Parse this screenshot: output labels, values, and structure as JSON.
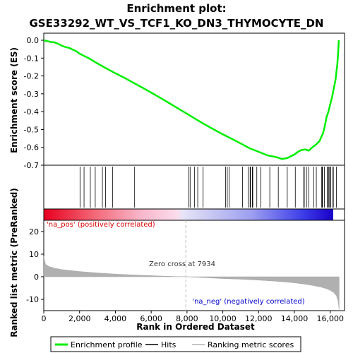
{
  "chart_data": {
    "type": "line",
    "title": "Enrichment plot: GSE33292_WT_VS_TCF1_KO_DN3_THYMOCYTE_DN",
    "title_line1": "Enrichment plot:",
    "title_line2": "GSE33292_WT_VS_TCF1_KO_DN3_THYMOCYTE_DN",
    "ylabel_top": "Enrichment score (ES)",
    "ylabel_bottom": "Ranked list metric (PreRanked)",
    "xlabel": "Rank in Ordered Dataset",
    "top_ylim": [
      -0.7,
      0.0
    ],
    "top_yticks": [
      "0.0",
      "-0.1",
      "-0.2",
      "-0.3",
      "-0.4",
      "-0.5",
      "-0.6",
      "-0.7"
    ],
    "bottom_ylim": [
      -15,
      25
    ],
    "bottom_yticks": [
      "20",
      "10",
      "0",
      "-10"
    ],
    "xlim": [
      0,
      16800
    ],
    "xticks": [
      "0",
      "2,000",
      "4,000",
      "6,000",
      "8,000",
      "10,000",
      "12,000",
      "14,000",
      "16,000"
    ],
    "grid": false,
    "enrichment_profile": {
      "name": "Enrichment profile",
      "color": "#00ee00",
      "x": [
        0,
        200,
        400,
        600,
        800,
        1000,
        1200,
        1400,
        1600,
        1800,
        2000,
        2500,
        3000,
        3500,
        4000,
        4500,
        5000,
        5500,
        6000,
        6500,
        7000,
        7500,
        8000,
        8500,
        9000,
        9500,
        10000,
        10500,
        11000,
        11500,
        12000,
        12500,
        13000,
        13300,
        13600,
        13800,
        14000,
        14200,
        14400,
        14600,
        14800,
        15000,
        15200,
        15400,
        15600,
        15700,
        15800,
        15900,
        16000,
        16100,
        16200,
        16300,
        16400,
        16450,
        16480
      ],
      "y": [
        0.0,
        -0.005,
        -0.01,
        -0.012,
        -0.02,
        -0.03,
        -0.038,
        -0.042,
        -0.052,
        -0.06,
        -0.075,
        -0.1,
        -0.13,
        -0.158,
        -0.185,
        -0.21,
        -0.238,
        -0.265,
        -0.293,
        -0.322,
        -0.352,
        -0.382,
        -0.412,
        -0.442,
        -0.472,
        -0.5,
        -0.527,
        -0.552,
        -0.578,
        -0.605,
        -0.625,
        -0.645,
        -0.655,
        -0.665,
        -0.66,
        -0.65,
        -0.64,
        -0.625,
        -0.615,
        -0.612,
        -0.618,
        -0.6,
        -0.585,
        -0.565,
        -0.52,
        -0.48,
        -0.43,
        -0.4,
        -0.36,
        -0.32,
        -0.27,
        -0.22,
        -0.13,
        -0.06,
        0.0
      ]
    },
    "hits_legend": "Hits",
    "hits_color": "#000000",
    "ranking_legend": "Ranking metric scores",
    "ranking_color": "#b0b0b0",
    "ranking_metric": {
      "x": [
        0,
        100,
        300,
        600,
        1000,
        2000,
        3000,
        4000,
        5000,
        6000,
        7000,
        7934,
        9000,
        10000,
        11000,
        12000,
        13000,
        14000,
        14500,
        15000,
        15500,
        15800,
        16000,
        16200,
        16350,
        16450,
        16500
      ],
      "y": [
        9.0,
        5.5,
        4.5,
        3.8,
        3.2,
        2.3,
        1.7,
        1.2,
        0.8,
        0.5,
        0.2,
        0.0,
        -0.4,
        -0.8,
        -1.1,
        -1.5,
        -2.0,
        -2.7,
        -3.2,
        -3.8,
        -4.6,
        -5.3,
        -6.0,
        -7.0,
        -8.5,
        -11.0,
        -15.0
      ]
    },
    "na_pos_label": "'na_pos' (positively correlated)",
    "na_neg_label": "'na_neg' (negatively correlated)",
    "zero_cross_label": "Zero cross at 7934",
    "zero_cross": 7934
  }
}
